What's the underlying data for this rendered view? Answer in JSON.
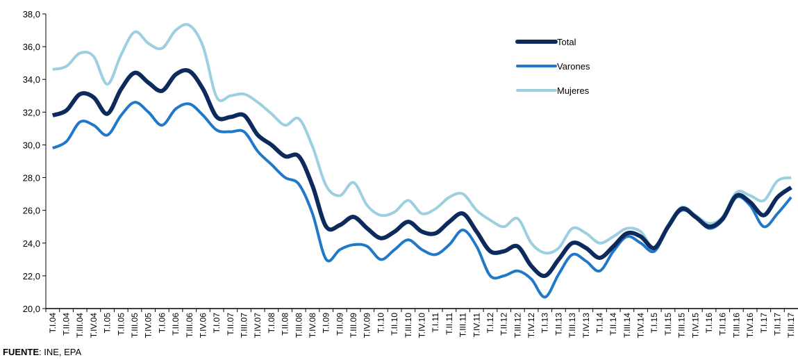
{
  "chart_data": {
    "type": "line",
    "categories": [
      "T.I.04",
      "T.II.04",
      "T.III.04",
      "T.IV.04",
      "T.I.05",
      "T.II.05",
      "T.III.05",
      "T.IV.05",
      "T.I.06",
      "T.II.06",
      "T.III.06",
      "T.IV.06",
      "T.I.07",
      "T.II.07",
      "T.III.07",
      "T.IV.07",
      "T.I.08",
      "T.II.08",
      "T.III.08",
      "T.IV.08",
      "T.I.09",
      "T.II.09",
      "T.III.09",
      "T.IV.09",
      "T.I.10",
      "T.II.10",
      "T.III.10",
      "T.IV.10",
      "T.I.11",
      "T.II.11",
      "T.III.11",
      "T.IV.11",
      "T.I.12",
      "T.II.12",
      "T.III.12",
      "T.IV.12",
      "T.I.13",
      "T.II.13",
      "T.III.13",
      "T.IV.13",
      "T.I.14",
      "T.II.14",
      "T.III.14",
      "T.IV.14",
      "T.I.15",
      "T.II.15",
      "T.III.15",
      "T.IV.15",
      "T.I.16",
      "T.II.16",
      "T.III.16",
      "T.IV.16",
      "T.I.17",
      "T.II.17",
      "T.III.17"
    ],
    "series": [
      {
        "name": "Total",
        "color": "#0d2a5c",
        "width": 6,
        "values": [
          31.8,
          32.1,
          33.1,
          32.9,
          31.9,
          33.4,
          34.4,
          33.8,
          33.3,
          34.3,
          34.5,
          33.4,
          31.7,
          31.7,
          31.8,
          30.6,
          30.0,
          29.3,
          29.3,
          27.5,
          25.0,
          25.1,
          25.6,
          24.9,
          24.3,
          24.7,
          25.3,
          24.7,
          24.6,
          25.3,
          25.8,
          24.7,
          23.5,
          23.5,
          23.8,
          22.6,
          22.0,
          23.0,
          24.0,
          23.7,
          23.1,
          23.8,
          24.6,
          24.4,
          23.7,
          25.0,
          26.1,
          25.6,
          25.0,
          25.5,
          26.9,
          26.5,
          25.7,
          26.8,
          27.4
        ]
      },
      {
        "name": "Varones",
        "color": "#1f78c8",
        "width": 4,
        "values": [
          29.8,
          30.2,
          31.4,
          31.2,
          30.6,
          31.8,
          32.6,
          32.0,
          31.2,
          32.2,
          32.5,
          31.8,
          30.9,
          30.8,
          30.8,
          29.6,
          28.8,
          28.0,
          27.6,
          25.8,
          23.0,
          23.6,
          23.9,
          23.8,
          23.0,
          23.6,
          24.2,
          23.6,
          23.3,
          23.9,
          24.8,
          23.8,
          22.0,
          22.0,
          22.3,
          21.8,
          20.7,
          22.1,
          23.3,
          22.9,
          22.3,
          23.5,
          24.4,
          24.0,
          23.5,
          25.0,
          26.0,
          25.6,
          24.9,
          25.4,
          26.8,
          26.3,
          25.0,
          25.8,
          26.8
        ]
      },
      {
        "name": "Mujeres",
        "color": "#9ccfe0",
        "width": 4,
        "values": [
          34.6,
          34.8,
          35.6,
          35.4,
          33.7,
          35.5,
          36.9,
          36.2,
          35.9,
          37.0,
          37.3,
          36.0,
          32.9,
          33.0,
          33.1,
          32.6,
          31.9,
          31.2,
          31.6,
          29.9,
          27.5,
          26.9,
          27.7,
          26.3,
          25.7,
          25.9,
          26.6,
          25.8,
          26.1,
          26.8,
          27.0,
          26.0,
          25.4,
          25.0,
          25.5,
          24.0,
          23.4,
          23.7,
          24.9,
          24.6,
          24.0,
          24.4,
          24.9,
          24.7,
          23.7,
          25.1,
          26.2,
          25.7,
          25.2,
          25.6,
          27.1,
          26.9,
          26.6,
          27.8,
          28.0
        ]
      }
    ],
    "ylim": [
      20,
      38
    ],
    "yticks": [
      {
        "value": 20,
        "label": "20,0"
      },
      {
        "value": 22,
        "label": "22,0"
      },
      {
        "value": 24,
        "label": "24,0"
      },
      {
        "value": 26,
        "label": "26,0"
      },
      {
        "value": 28,
        "label": "28,0"
      },
      {
        "value": 30,
        "label": "30,0"
      },
      {
        "value": 32,
        "label": "32,0"
      },
      {
        "value": 34,
        "label": "34,0"
      },
      {
        "value": 36,
        "label": "36,0"
      },
      {
        "value": 38,
        "label": "38,0"
      }
    ],
    "legend": "upper right",
    "source_label": "FUENTE",
    "source": ": INE, EPA"
  }
}
